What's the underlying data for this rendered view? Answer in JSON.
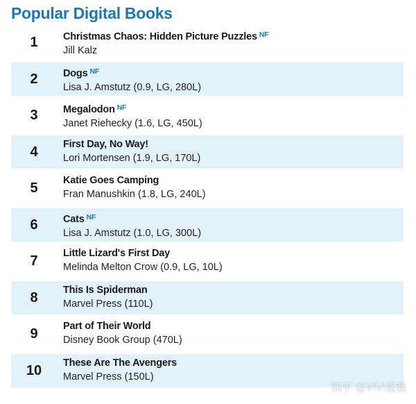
{
  "title": "Popular Digital Books",
  "books": [
    {
      "rank": "1",
      "title": "Christmas Chaos: Hidden Picture Puzzles",
      "nf": "NF",
      "author": "Jill Kalz"
    },
    {
      "rank": "2",
      "title": "Dogs",
      "nf": "NF",
      "author": "Lisa J. Amstutz (0.9, LG, 280L)"
    },
    {
      "rank": "3",
      "title": "Megalodon",
      "nf": "NF",
      "author": "Janet Riehecky (1.6, LG, 450L)"
    },
    {
      "rank": "4",
      "title": "First Day, No Way!",
      "nf": "",
      "author": "Lori Mortensen (1.9, LG, 170L)"
    },
    {
      "rank": "5",
      "title": "Katie Goes Camping",
      "nf": "",
      "author": "Fran Manushkin (1.8, LG, 240L)"
    },
    {
      "rank": "6",
      "title": "Cats",
      "nf": "NF",
      "author": "Lisa J. Amstutz (1.0, LG, 300L)"
    },
    {
      "rank": "7",
      "title": "Little Lizard's First Day",
      "nf": "",
      "author": "Melinda Melton Crow (0.9, LG, 10L)"
    },
    {
      "rank": "8",
      "title": "This Is Spiderman",
      "nf": "",
      "author": "Marvel Press (110L)"
    },
    {
      "rank": "9",
      "title": "Part of Their World",
      "nf": "",
      "author": "Disney Book Group (470L)"
    },
    {
      "rank": "10",
      "title": "These Are The Avengers",
      "nf": "",
      "author": "Marvel Press (150L)"
    }
  ],
  "watermark": "知乎 @ViVi是我",
  "colors": {
    "title": "#1b78b3",
    "nf_badge": "#1b78b3",
    "row_shade": "#e3f1fa"
  }
}
